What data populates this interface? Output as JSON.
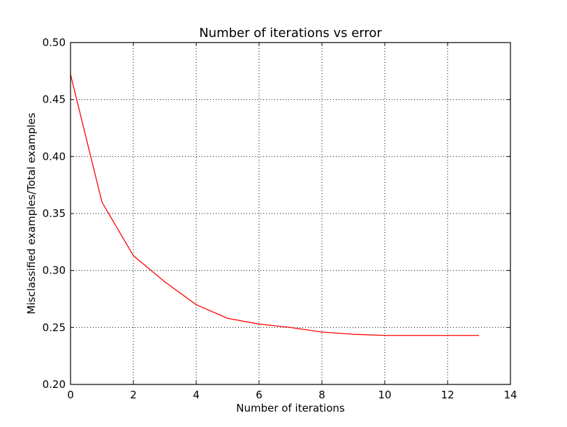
{
  "chart_data": {
    "type": "line",
    "title": "Number of iterations vs error",
    "xlabel": "Number of iterations",
    "ylabel": "Misclassified examples/Total examples",
    "xlim": [
      0,
      14
    ],
    "ylim": [
      0.2,
      0.5
    ],
    "xticks": [
      0,
      2,
      4,
      6,
      8,
      10,
      12,
      14
    ],
    "yticks": [
      0.2,
      0.25,
      0.3,
      0.35,
      0.4,
      0.45,
      0.5
    ],
    "xtick_labels": [
      "0",
      "2",
      "4",
      "6",
      "8",
      "10",
      "12",
      "14"
    ],
    "ytick_labels": [
      "0.20",
      "0.25",
      "0.30",
      "0.35",
      "0.40",
      "0.45",
      "0.50"
    ],
    "grid": true,
    "series": [
      {
        "color": "#ff0000",
        "x": [
          0,
          1,
          2,
          3,
          4,
          5,
          6,
          7,
          8,
          9,
          10,
          11,
          12,
          13
        ],
        "y": [
          0.472,
          0.36,
          0.313,
          0.29,
          0.27,
          0.258,
          0.253,
          0.25,
          0.246,
          0.244,
          0.243,
          0.243,
          0.243,
          0.243
        ]
      }
    ]
  }
}
